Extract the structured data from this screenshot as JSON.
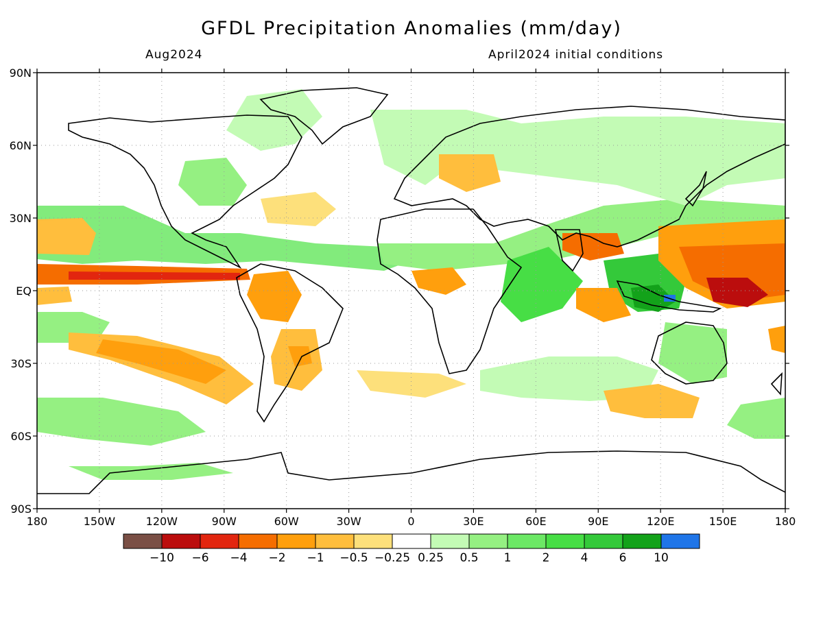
{
  "header": {
    "title": "GFDL Precipitation Anomalies (mm/day)",
    "valid_month": "Aug2024",
    "init_conditions": "April2024 initial conditions"
  },
  "axes": {
    "lat_labels": [
      "90N",
      "60N",
      "30N",
      "EQ",
      "30S",
      "60S",
      "90S"
    ],
    "lon_labels": [
      "180",
      "150W",
      "120W",
      "90W",
      "60W",
      "30W",
      "0",
      "30E",
      "60E",
      "90E",
      "120E",
      "150E",
      "180"
    ]
  },
  "colors": {
    "land_outline": "#000000",
    "gridline": "#9a9a9a",
    "frame": "#000000"
  },
  "colorbar": {
    "bins": [
      {
        "color": "#7a4f45"
      },
      {
        "color": "#bb0d0d"
      },
      {
        "color": "#e2260f"
      },
      {
        "color": "#f56d00"
      },
      {
        "color": "#ff9f0d"
      },
      {
        "color": "#ffbe3d"
      },
      {
        "color": "#fde07b"
      },
      {
        "color": "#ffffff"
      },
      {
        "color": "#c3fbb5"
      },
      {
        "color": "#95f082"
      },
      {
        "color": "#6ce865"
      },
      {
        "color": "#47de45"
      },
      {
        "color": "#34c93a"
      },
      {
        "color": "#13a21a"
      },
      {
        "color": "#1f75e8"
      }
    ],
    "labels": [
      "−10",
      "−6",
      "−4",
      "−2",
      "−1",
      "−0.5",
      "−0.25",
      "0.25",
      "0.5",
      "1",
      "2",
      "4",
      "6",
      "10"
    ]
  }
}
